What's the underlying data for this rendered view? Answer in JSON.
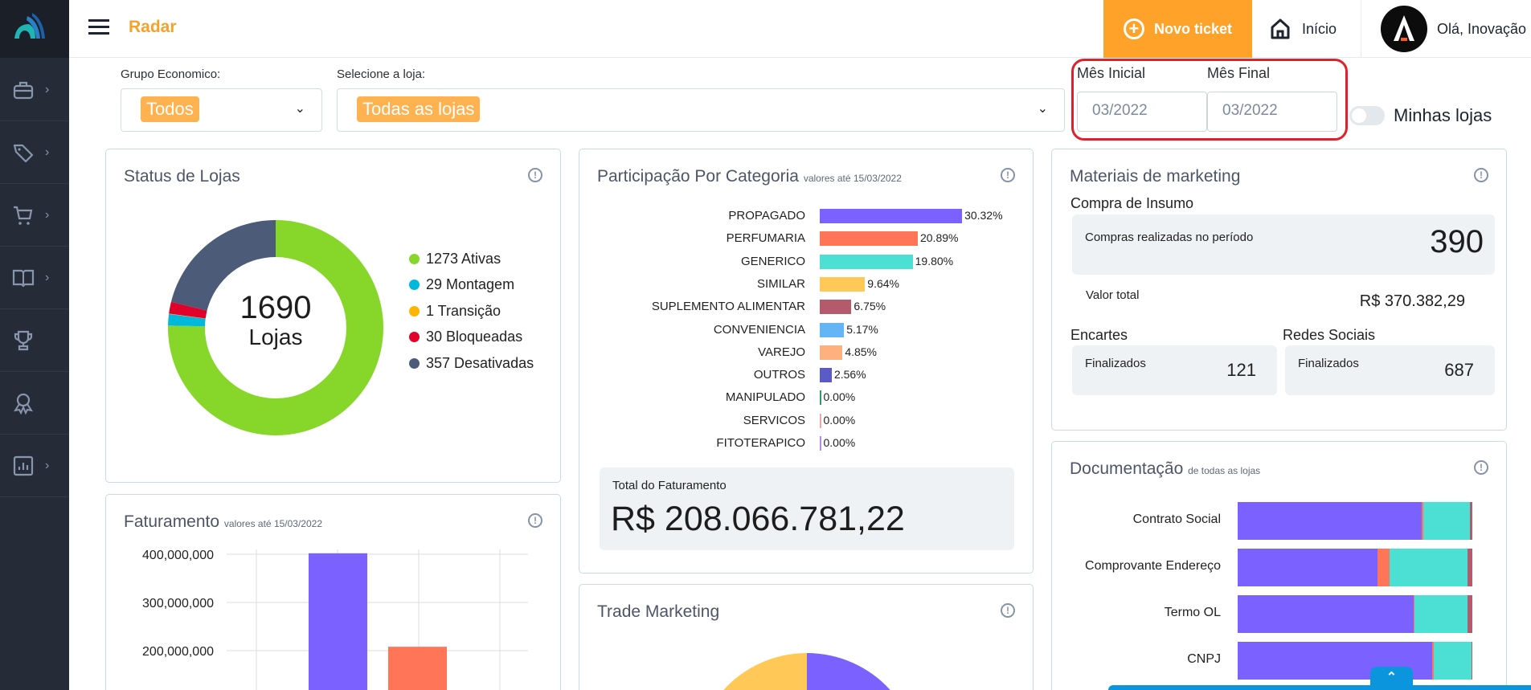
{
  "header": {
    "title": "Radar",
    "new_ticket": "Novo ticket",
    "home": "Início",
    "greeting": "Olá, Inovação"
  },
  "sidebar": {
    "items": [
      {
        "icon": "briefcase-icon",
        "chevron": true
      },
      {
        "icon": "tag-icon",
        "chevron": true
      },
      {
        "icon": "cart-icon",
        "chevron": true
      },
      {
        "icon": "book-icon",
        "chevron": true
      },
      {
        "icon": "trophy-icon",
        "chevron": false
      },
      {
        "icon": "award-icon",
        "chevron": false
      },
      {
        "icon": "chart-icon",
        "chevron": true
      }
    ]
  },
  "filters": {
    "grupo_label": "Grupo Economico:",
    "grupo_value": "Todos",
    "loja_label": "Selecione a loja:",
    "loja_value": "Todas as lojas",
    "mes_inicial_label": "Mês Inicial",
    "mes_inicial_value": "03/2022",
    "mes_final_label": "Mês Final",
    "mes_final_value": "03/2022",
    "minhas_lojas": "Minhas lojas",
    "minhas_lojas_on": false
  },
  "status": {
    "title": "Status de Lojas",
    "total": "1690",
    "total_label": "Lojas"
  },
  "faturamento": {
    "title": "Faturamento",
    "subtitle": "valores até 15/03/2022"
  },
  "participacao": {
    "title": "Participação Por Categoria",
    "subtitle": "valores até 15/03/2022",
    "total_label": "Total do Faturamento",
    "total_value": "R$ 208.066.781,22"
  },
  "trade": {
    "title": "Trade Marketing"
  },
  "materiais": {
    "title": "Materiais de marketing",
    "compra_title": "Compra de Insumo",
    "compras_label": "Compras realizadas no período",
    "compras_value": "390",
    "valor_label": "Valor total",
    "valor_value": "R$ 370.382,29",
    "encartes_title": "Encartes",
    "encartes_label": "Finalizados",
    "encartes_value": "121",
    "redes_title": "Redes Sociais",
    "redes_label": "Finalizados",
    "redes_value": "687"
  },
  "documentacao": {
    "title": "Documentação",
    "subtitle": "de todas as lojas"
  },
  "colors": {
    "accent": "#ffa229",
    "highlight": "#e0202a"
  },
  "chart_data": [
    {
      "type": "pie",
      "name": "status",
      "labels": [
        "1273 Ativas",
        "29 Montagem",
        "1 Transição",
        "30 Bloqueadas",
        "357 Desativadas"
      ],
      "values": [
        1273,
        29,
        1,
        30,
        357
      ],
      "colors": [
        "#86d72a",
        "#00b8d9",
        "#ffb400",
        "#e0002a",
        "#4c5b78"
      ],
      "legend": "right"
    },
    {
      "type": "bar",
      "name": "faturamento",
      "categories": [
        "",
        ""
      ],
      "values": [
        402000000,
        208066781
      ],
      "colors": [
        "#7b61ff",
        "#ff7557"
      ],
      "yticks": [
        "400,000,000",
        "300,000,000",
        "200,000,000"
      ],
      "ytick_values": [
        400000000,
        300000000,
        200000000
      ],
      "grid": true
    },
    {
      "type": "bar",
      "orientation": "horizontal",
      "name": "participacao",
      "categories": [
        "PROPAGADO",
        "PERFUMARIA",
        "GENERICO",
        "SIMILAR",
        "SUPLEMENTO ALIMENTAR",
        "CONVENIENCIA",
        "VAREJO",
        "OUTROS",
        "MANIPULADO",
        "SERVICOS",
        "FITOTERAPICO"
      ],
      "values": [
        30.32,
        20.89,
        19.8,
        9.64,
        6.75,
        5.17,
        4.85,
        2.56,
        0,
        0,
        0
      ],
      "labels": [
        "30.32%",
        "20.89%",
        "19.80%",
        "9.64%",
        "6.75%",
        "5.17%",
        "4.85%",
        "2.56%",
        "0.00%",
        "0.00%",
        "0.00%"
      ],
      "colors": [
        "#7b61ff",
        "#ff7557",
        "#4cdfd4",
        "#ffc857",
        "#b35a6c",
        "#64b5f6",
        "#ffb07c",
        "#5b5bc8",
        "#2e9c6a",
        "#f4a3a8",
        "#b68be0"
      ]
    },
    {
      "type": "bar",
      "orientation": "horizontal",
      "stacked": true,
      "name": "documentacao",
      "categories": [
        "Contrato Social",
        "Comprovante Endereço",
        "Termo OL",
        "CNPJ"
      ],
      "series": [
        {
          "color": "#7b61ff",
          "values": [
            78.5,
            59.6,
            75,
            83
          ]
        },
        {
          "color": "#ff7557",
          "values": [
            0.5,
            5,
            0.5,
            0.5
          ]
        },
        {
          "color": "#4cdfd4",
          "values": [
            20,
            33.3,
            22.5,
            16
          ]
        },
        {
          "color": "#b35a6c",
          "values": [
            1,
            2.1,
            2,
            0.5
          ]
        }
      ]
    }
  ]
}
